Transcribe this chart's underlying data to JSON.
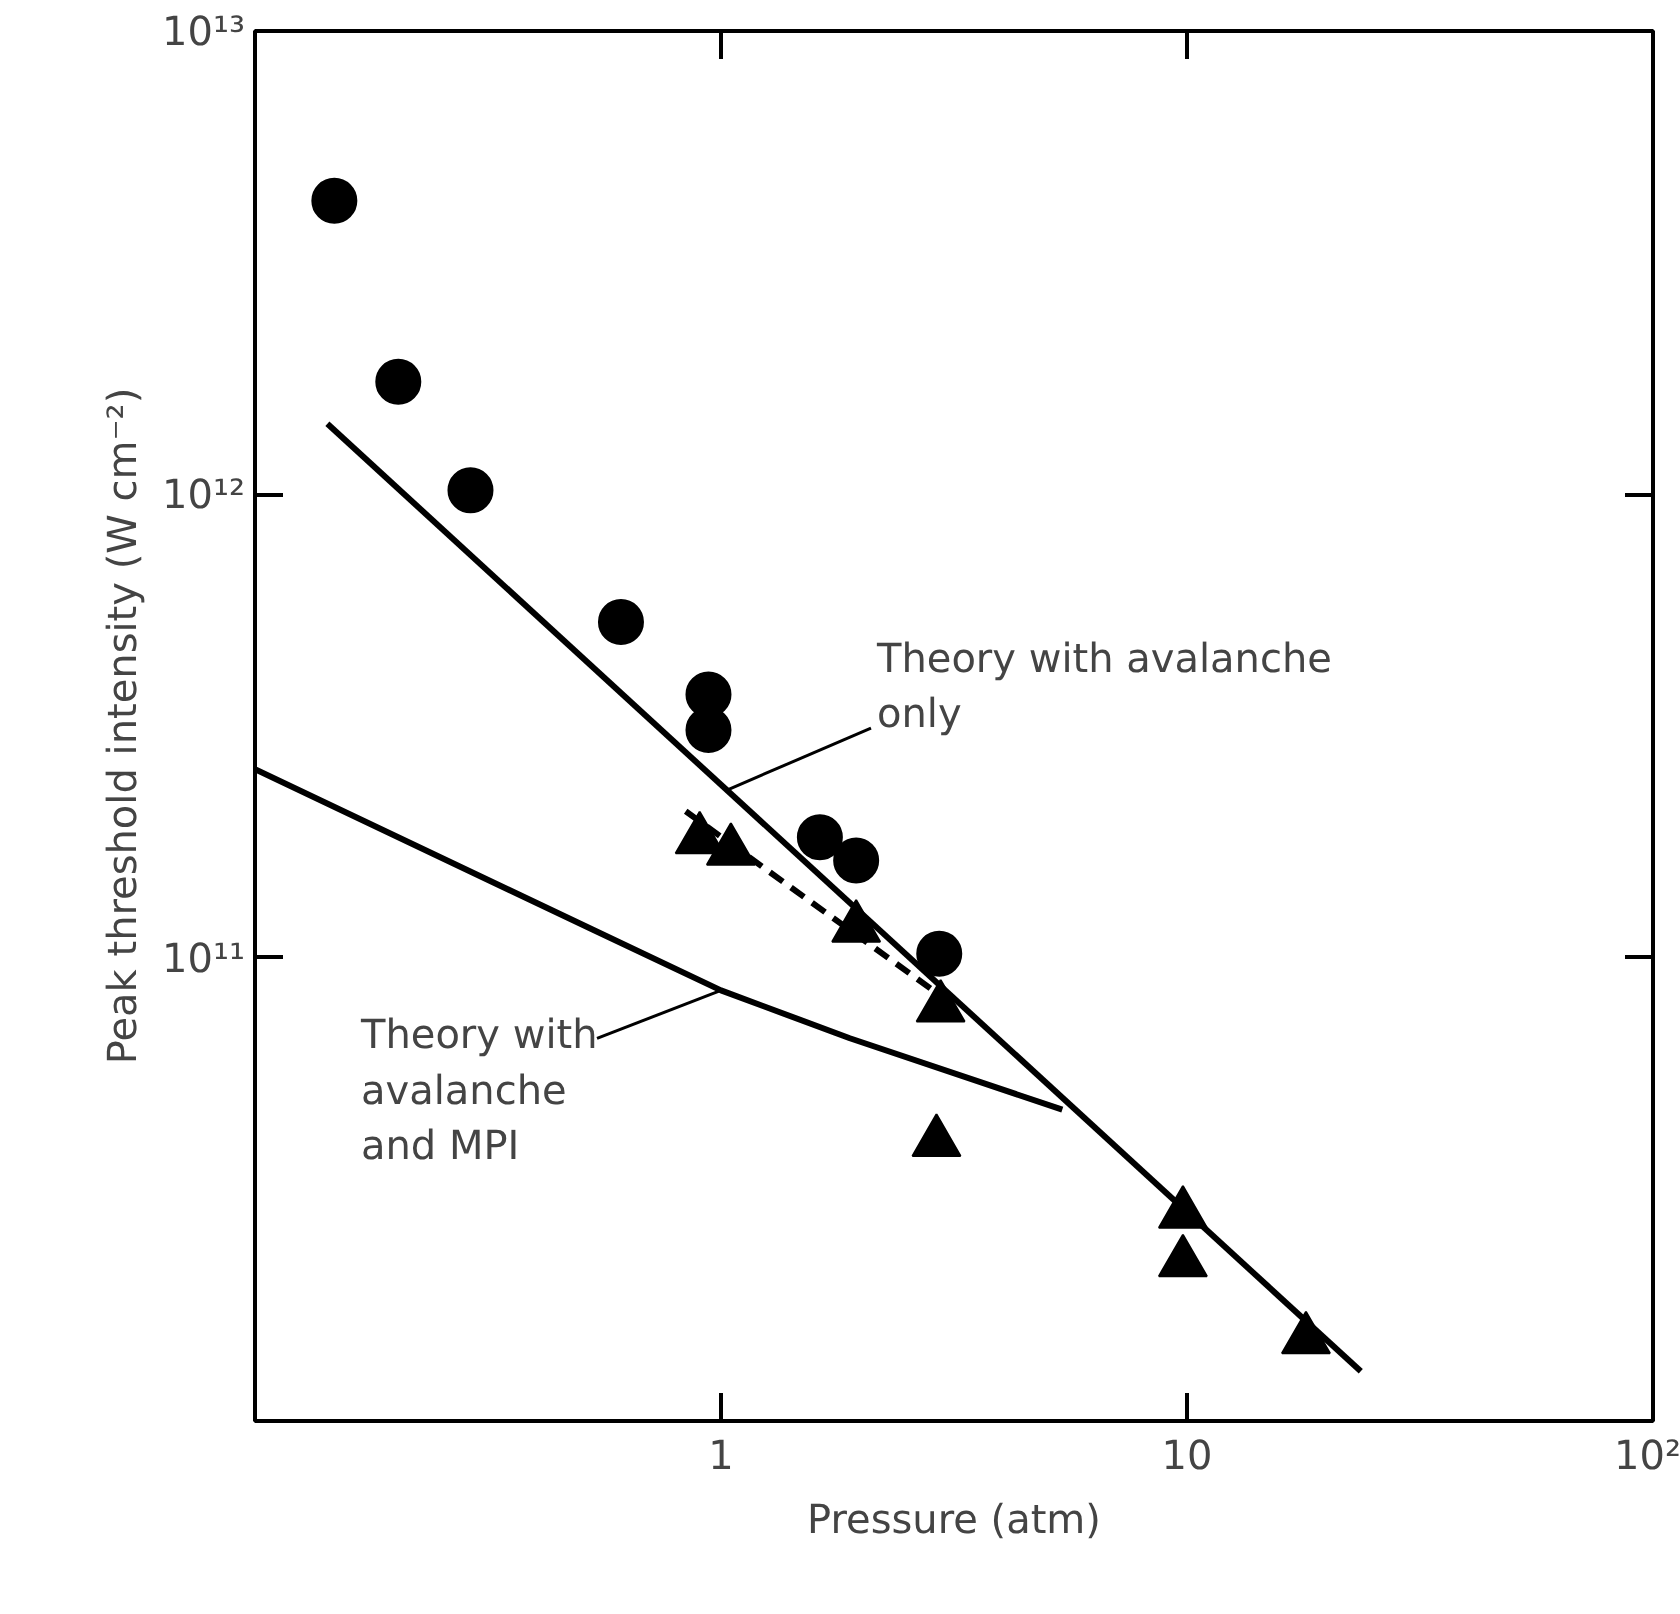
{
  "chart_data": {
    "type": "scatter",
    "xlabel": "Pressure (atm)",
    "ylabel": "Peak threshold intensity (W cm⁻²)",
    "log": "xy",
    "xlim": [
      0.1,
      100
    ],
    "ylim": [
      10000000000.0,
      10000000000000.0
    ],
    "xticks": [
      1,
      10,
      {
        "value": 100,
        "label": "10²"
      }
    ],
    "yticks": [
      {
        "value": 100000000000.0,
        "label": "10¹¹"
      },
      {
        "value": 1000000000000.0,
        "label": "10¹²"
      },
      {
        "value": 10000000000000.0,
        "label": "10¹³"
      }
    ],
    "series": [
      {
        "marker": "circle",
        "color": "#000000",
        "x": [
          0.148,
          0.203,
          0.29,
          0.61,
          0.94,
          0.94,
          1.63,
          1.95,
          2.94
        ],
        "values": [
          4300000000000.0,
          1750000000000.0,
          1020000000000.0,
          530000000000.0,
          370000000000.0,
          310000000000.0,
          182000000000.0,
          162000000000.0,
          102000000000.0
        ]
      },
      {
        "marker": "triangle",
        "color": "#000000",
        "x": [
          0.9,
          1.05,
          1.95,
          2.96,
          2.9,
          9.8,
          9.8,
          18
        ],
        "values": [
          180000000000.0,
          170000000000.0,
          116000000000.0,
          78000000000.0,
          40000000000.0,
          28000000000.0,
          22000000000.0,
          15000000000.0
        ]
      },
      {
        "type": "line",
        "line_style": "solid",
        "color": "#000000",
        "x": [
          0.143,
          23.6
        ],
        "values": [
          1420000000000.0,
          12800000000.0
        ]
      },
      {
        "type": "line",
        "line_style": "solid",
        "color": "#000000",
        "x": [
          0.1,
          0.53,
          1.0,
          1.89,
          5.4
        ],
        "values": [
          255000000000.0,
          115000000000.0,
          85000000000.0,
          67000000000.0,
          47000000000.0
        ]
      },
      {
        "type": "line",
        "line_style": "dashed",
        "color": "#000000",
        "x": [
          0.84,
          2.9
        ],
        "values": [
          207000000000.0,
          84000000000.0
        ]
      }
    ],
    "annotations": [
      {
        "text": "Theory with avalanche\nonly",
        "x": 1.03,
        "y": 230000000000.0
      },
      {
        "text": "Theory with\navalanche\nand MPI",
        "x": 1.0,
        "y": 85000000000.0
      }
    ]
  }
}
